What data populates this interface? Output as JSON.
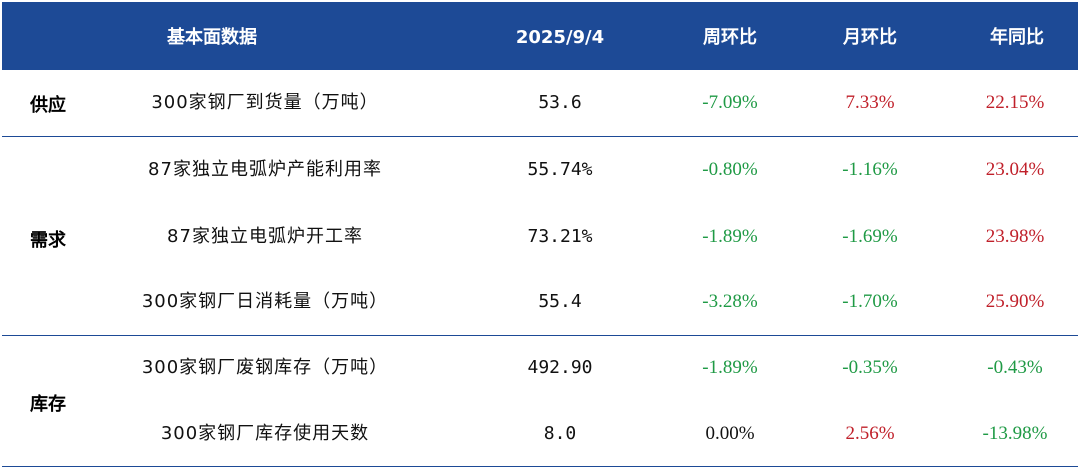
{
  "header": {
    "col_metric": "基本面数据",
    "col_date": "2025/9/4",
    "col_wow": "周环比",
    "col_mom": "月环比",
    "col_yoy": "年同比"
  },
  "colors": {
    "header_bg": "#1d4a96",
    "up": "#c0202a",
    "down": "#1f9a45",
    "neutral": "#111111"
  },
  "groups": [
    {
      "label": "供应",
      "rows": [
        {
          "name": "300家钢厂到货量（万吨）",
          "value": "53.6",
          "wow": "-7.09%",
          "mom": "7.33%",
          "yoy": "22.15%"
        }
      ]
    },
    {
      "label": "需求",
      "rows": [
        {
          "name": "87家独立电弧炉产能利用率",
          "value": "55.74%",
          "wow": "-0.80%",
          "mom": "-1.16%",
          "yoy": "23.04%"
        },
        {
          "name": "87家独立电弧炉开工率",
          "value": "73.21%",
          "wow": "-1.89%",
          "mom": "-1.69%",
          "yoy": "23.98%"
        },
        {
          "name": "300家钢厂日消耗量（万吨）",
          "value": "55.4",
          "wow": "-3.28%",
          "mom": "-1.70%",
          "yoy": "25.90%"
        }
      ]
    },
    {
      "label": "库存",
      "rows": [
        {
          "name": "300家钢厂废钢库存（万吨）",
          "value": "492.90",
          "wow": "-1.89%",
          "mom": "-0.35%",
          "yoy": "-0.43%"
        },
        {
          "name": "300家钢厂库存使用天数",
          "value": "8.0",
          "wow": "0.00%",
          "mom": "2.56%",
          "yoy": "-13.98%"
        }
      ]
    }
  ]
}
